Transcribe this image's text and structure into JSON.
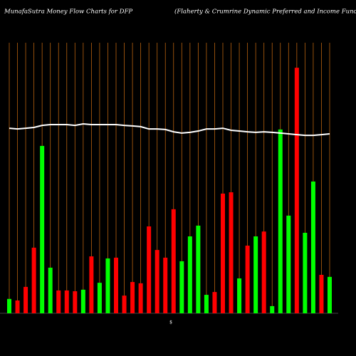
{
  "chart_data": {
    "type": "bar",
    "title": "MunafaSutra  Money Flow  Charts for DFP",
    "subtitle": "(Flaherty & Crumrine   Dynamic Preferred and Income   Fund Inc.) Mun",
    "x_label": "$",
    "categories": [
      null,
      null,
      null,
      null,
      null,
      null,
      null,
      null,
      null,
      null,
      null,
      null,
      null,
      null,
      null,
      null,
      null,
      null,
      null,
      null,
      null,
      null,
      null,
      null,
      null,
      null,
      null,
      null,
      null,
      null,
      null,
      null,
      null,
      null,
      null,
      null,
      null,
      null,
      null,
      null
    ],
    "series": [
      {
        "kind": "bar",
        "values": [
          5.6,
          5,
          10.3,
          25.6,
          65.3,
          17.8,
          8.9,
          8.9,
          8.6,
          9.2,
          22.2,
          11.9,
          21.4,
          21.7,
          6.9,
          12.2,
          11.7,
          33.9,
          24.7,
          21.7,
          40.6,
          20.3,
          30,
          34.2,
          7.2,
          8.3,
          46.7,
          47.2,
          13.6,
          26.4,
          30,
          31.9,
          2.8,
          71.7,
          38.1,
          95.8,
          31.4,
          51.4,
          15,
          14.2
        ],
        "colors": [
          "#00ff00",
          "#ff0000",
          "#ff0000",
          "#ff0000",
          "#00ff00",
          "#00ff00",
          "#ff0000",
          "#ff0000",
          "#ff0000",
          "#00ff00",
          "#ff0000",
          "#00ff00",
          "#00ff00",
          "#ff0000",
          "#ff0000",
          "#ff0000",
          "#ff0000",
          "#ff0000",
          "#ff0000",
          "#ff0000",
          "#ff0000",
          "#00ff00",
          "#00ff00",
          "#00ff00",
          "#00ff00",
          "#ff0000",
          "#ff0000",
          "#ff0000",
          "#00ff00",
          "#ff0000",
          "#00ff00",
          "#ff0000",
          "#00ff00",
          "#00ff00",
          "#00ff00",
          "#ff0000",
          "#00ff00",
          "#00ff00",
          "#ff0000",
          "#00ff00"
        ]
      },
      {
        "kind": "line",
        "color": "#ffffff",
        "values": [
          72.2,
          71.9,
          72.2,
          72.5,
          73.3,
          73.6,
          73.6,
          73.6,
          73.3,
          73.9,
          73.6,
          73.6,
          73.6,
          73.6,
          73.3,
          73.1,
          72.8,
          71.9,
          71.9,
          71.7,
          70.8,
          70.3,
          70.6,
          71.1,
          71.9,
          71.9,
          72.2,
          71.4,
          71.1,
          70.8,
          70.6,
          70.8,
          70.6,
          70.3,
          70,
          69.7,
          69.4,
          69.4,
          69.7,
          70
        ]
      }
    ],
    "ylim": [
      0,
      100
    ],
    "grid_color": "#b8620f",
    "background": "#000000"
  }
}
